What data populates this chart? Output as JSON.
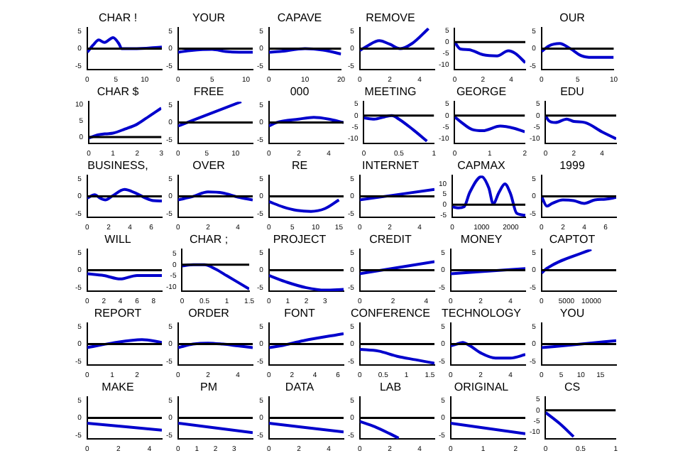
{
  "chart_data": [
    {
      "type": "line",
      "title": "CHAR !",
      "x": [
        0,
        1,
        2,
        3,
        4.5,
        5.5,
        6,
        8,
        13
      ],
      "values": [
        -1,
        1,
        2.5,
        1.8,
        3.2,
        1.5,
        0,
        0,
        0.5
      ],
      "color": "#0000cc",
      "xlim": [
        0,
        13
      ],
      "xticks": [
        0,
        5,
        10
      ],
      "ylim": [
        -6,
        6
      ],
      "yticks": [
        -5,
        0,
        5
      ],
      "ref_lines": [
        {
          "axis": "y",
          "value": 0,
          "color": "#000000"
        }
      ]
    },
    {
      "type": "line",
      "title": "YOUR",
      "x": [
        0,
        2,
        5,
        7,
        9,
        11
      ],
      "values": [
        -1,
        -0.5,
        -0.2,
        -0.8,
        -1,
        -1
      ],
      "color": "#0000cc",
      "xlim": [
        0,
        11
      ],
      "xticks": [
        0,
        5,
        10
      ],
      "ylim": [
        -6,
        6
      ],
      "yticks": [
        -5,
        0,
        5
      ],
      "ref_lines": [
        {
          "axis": "y",
          "value": 0,
          "color": "#000000"
        }
      ]
    },
    {
      "type": "line",
      "title": "CAPAVE",
      "x": [
        0,
        3,
        10,
        15,
        20
      ],
      "values": [
        -1,
        -0.8,
        0,
        -0.4,
        -1.5
      ],
      "color": "#0000cc",
      "xlim": [
        0,
        20
      ],
      "xticks": [
        0,
        10,
        20
      ],
      "ylim": [
        -6,
        6
      ],
      "yticks": [
        -5,
        0,
        5
      ],
      "ref_lines": [
        {
          "axis": "y",
          "value": 0,
          "color": "#000000"
        }
      ]
    },
    {
      "type": "line",
      "title": "REMOVE",
      "x": [
        0,
        0.5,
        1.3,
        2,
        2.7,
        3.5,
        4.6
      ],
      "values": [
        -0.5,
        0.8,
        2.3,
        1.3,
        0,
        1.5,
        5.8
      ],
      "color": "#0000cc",
      "xlim": [
        0,
        5
      ],
      "xticks": [
        0,
        2,
        4
      ],
      "ylim": [
        -6,
        6
      ],
      "yticks": [
        -5,
        0,
        5
      ],
      "ref_lines": [
        {
          "axis": "y",
          "value": 0,
          "color": "#000000"
        }
      ]
    },
    {
      "type": "line",
      "x": [
        0,
        0.4,
        1,
        2,
        3,
        3.8,
        4.3,
        5
      ],
      "values": [
        0,
        -3,
        -3.3,
        -5.5,
        -6,
        -3.8,
        -5,
        -9
      ],
      "color": "#0000cc",
      "xlim": [
        0,
        5
      ],
      "xticks": [
        0,
        2,
        4
      ],
      "ylim": [
        -12,
        6
      ],
      "yticks": [
        -10,
        -5,
        0,
        5
      ],
      "ref_lines": [
        {
          "axis": "y",
          "value": 0,
          "color": "#000000"
        }
      ]
    },
    {
      "type": "line",
      "title": "OUR",
      "x": [
        0,
        1,
        2.5,
        4,
        5.5,
        7,
        10
      ],
      "values": [
        -0.8,
        0.8,
        1.5,
        0,
        -2,
        -2.5,
        -2.5
      ],
      "color": "#0000cc",
      "xlim": [
        0,
        10
      ],
      "xticks": [
        0,
        5,
        10
      ],
      "ylim": [
        -6,
        6
      ],
      "yticks": [
        -5,
        0,
        5
      ],
      "ref_lines": [
        {
          "axis": "y",
          "value": 0,
          "color": "#000000"
        }
      ]
    },
    {
      "type": "line",
      "title": "CHAR $",
      "x": [
        0,
        0.3,
        0.7,
        1,
        1.5,
        2,
        2.5,
        3
      ],
      "values": [
        -0.3,
        0.5,
        1,
        1.2,
        2.5,
        4,
        6.5,
        9
      ],
      "color": "#0000cc",
      "xlim": [
        0,
        3
      ],
      "xticks": [
        0,
        1,
        2,
        3
      ],
      "ylim": [
        -2,
        11
      ],
      "yticks": [
        0,
        5,
        10
      ],
      "ref_lines": [
        {
          "axis": "y",
          "value": 0,
          "color": "#000000"
        }
      ]
    },
    {
      "type": "line",
      "title": "FREE",
      "x": [
        0,
        11
      ],
      "values": [
        -1,
        6
      ],
      "color": "#0000cc",
      "xlim": [
        0,
        13
      ],
      "xticks": [
        0,
        5,
        10
      ],
      "ylim": [
        -6,
        6
      ],
      "yticks": [
        -5,
        0,
        5
      ],
      "ref_lines": [
        {
          "axis": "y",
          "value": 0,
          "color": "#000000"
        }
      ]
    },
    {
      "type": "line",
      "title": "000",
      "x": [
        0,
        0.5,
        2,
        3,
        4,
        5
      ],
      "values": [
        -1,
        0,
        1,
        1.5,
        1,
        0
      ],
      "color": "#0000cc",
      "xlim": [
        0,
        5
      ],
      "xticks": [
        0,
        2,
        4
      ],
      "ylim": [
        -6,
        6
      ],
      "yticks": [
        -5,
        0,
        5
      ],
      "ref_lines": [
        {
          "axis": "y",
          "value": 0,
          "color": "#000000"
        }
      ]
    },
    {
      "type": "line",
      "title": "MEETING",
      "x": [
        0,
        0.15,
        0.3,
        0.4,
        0.5,
        0.7,
        0.9
      ],
      "values": [
        -1,
        -1.5,
        -0.5,
        0,
        -1.5,
        -6,
        -11
      ],
      "color": "#0000cc",
      "xlim": [
        0,
        1
      ],
      "xticks": [
        0,
        0.5,
        1
      ],
      "ylim": [
        -12,
        6
      ],
      "yticks": [
        -10,
        -5,
        0,
        5
      ],
      "ref_lines": [
        {
          "axis": "y",
          "value": 0,
          "color": "#000000"
        }
      ]
    },
    {
      "type": "line",
      "title": "GEORGE",
      "x": [
        0,
        0.2,
        0.5,
        0.8,
        1.3,
        1.7,
        2
      ],
      "values": [
        -0.5,
        -3,
        -6,
        -6.5,
        -4.5,
        -5.5,
        -7
      ],
      "color": "#0000cc",
      "xlim": [
        0,
        2
      ],
      "xticks": [
        0,
        1,
        2
      ],
      "ylim": [
        -12,
        6
      ],
      "yticks": [
        -10,
        -5,
        0,
        5
      ],
      "ref_lines": [
        {
          "axis": "y",
          "value": 0,
          "color": "#000000"
        }
      ]
    },
    {
      "type": "line",
      "title": "EDU",
      "x": [
        0,
        0.2,
        0.7,
        1.5,
        2,
        2.8,
        4,
        5
      ],
      "values": [
        0,
        -2,
        -3,
        -1.5,
        -2.5,
        -3,
        -7,
        -10
      ],
      "color": "#0000cc",
      "xlim": [
        0,
        5
      ],
      "xticks": [
        0,
        2,
        4
      ],
      "ylim": [
        -12,
        6
      ],
      "yticks": [
        -10,
        -5,
        0,
        5
      ],
      "ref_lines": [
        {
          "axis": "y",
          "value": 0,
          "color": "#000000"
        }
      ]
    },
    {
      "type": "line",
      "title": "BUSINESS,",
      "x": [
        0,
        0.7,
        1.2,
        1.7,
        2.3,
        3.5,
        4.5,
        5.5,
        6.2,
        7
      ],
      "values": [
        -0.5,
        0.5,
        -0.5,
        -1,
        0,
        2,
        1,
        -0.5,
        -1.2,
        -1.3
      ],
      "color": "#0000cc",
      "xlim": [
        0,
        7
      ],
      "xticks": [
        0,
        2,
        4,
        6
      ],
      "ylim": [
        -6,
        6
      ],
      "yticks": [
        -5,
        0,
        5
      ],
      "ref_lines": [
        {
          "axis": "y",
          "value": 0,
          "color": "#000000"
        }
      ]
    },
    {
      "type": "line",
      "title": "OVER",
      "x": [
        0,
        1,
        2,
        3,
        4,
        5
      ],
      "values": [
        -1,
        0,
        1.3,
        1,
        -0.2,
        -1
      ],
      "color": "#0000cc",
      "xlim": [
        0,
        5
      ],
      "xticks": [
        0,
        2,
        4
      ],
      "ylim": [
        -6,
        6
      ],
      "yticks": [
        -5,
        0,
        5
      ],
      "ref_lines": [
        {
          "axis": "y",
          "value": 0,
          "color": "#000000"
        }
      ]
    },
    {
      "type": "line",
      "title": "RE",
      "x": [
        0,
        3,
        6,
        9,
        12,
        15
      ],
      "values": [
        -1.5,
        -3,
        -4,
        -4.3,
        -3.5,
        -1
      ],
      "color": "#0000cc",
      "xlim": [
        0,
        16
      ],
      "xticks": [
        0,
        5,
        10,
        15
      ],
      "ylim": [
        -6,
        6
      ],
      "yticks": [
        -5,
        0,
        5
      ],
      "ref_lines": [
        {
          "axis": "y",
          "value": 0,
          "color": "#000000"
        }
      ]
    },
    {
      "type": "line",
      "title": "INTERNET",
      "x": [
        0,
        5
      ],
      "values": [
        -1,
        2
      ],
      "color": "#0000cc",
      "xlim": [
        0,
        5
      ],
      "xticks": [
        0,
        2,
        4
      ],
      "ylim": [
        -6,
        6
      ],
      "yticks": [
        -5,
        0,
        5
      ],
      "ref_lines": [
        {
          "axis": "y",
          "value": 0,
          "color": "#000000"
        }
      ]
    },
    {
      "type": "line",
      "title": "CAPMAX",
      "x": [
        0,
        200,
        400,
        600,
        1000,
        1250,
        1400,
        1600,
        1800,
        2000,
        2200,
        2500
      ],
      "values": [
        -1,
        -1.5,
        -1,
        6,
        13.5,
        8,
        0.5,
        6,
        10,
        5,
        -4,
        -5
      ],
      "color": "#0000cc",
      "xlim": [
        0,
        2500
      ],
      "xticks": [
        0,
        1000,
        2000
      ],
      "ylim": [
        -6,
        14
      ],
      "yticks": [
        -5,
        0,
        5,
        10
      ],
      "ref_lines": [
        {
          "axis": "y",
          "value": 0,
          "color": "#000000"
        }
      ]
    },
    {
      "type": "line",
      "title": "1999",
      "x": [
        0,
        0.5,
        1,
        2,
        3,
        4,
        5,
        6,
        7
      ],
      "values": [
        0,
        -2.8,
        -2,
        -1,
        -1.2,
        -2,
        -1,
        -0.8,
        -0.3
      ],
      "color": "#0000cc",
      "xlim": [
        0,
        7
      ],
      "xticks": [
        0,
        2,
        4,
        6
      ],
      "ylim": [
        -6,
        6
      ],
      "yticks": [
        -5,
        0,
        5
      ],
      "ref_lines": [
        {
          "axis": "y",
          "value": 0,
          "color": "#000000"
        }
      ]
    },
    {
      "type": "line",
      "title": "WILL",
      "x": [
        0,
        2,
        4,
        6,
        9
      ],
      "values": [
        -1,
        -1.5,
        -2.5,
        -1.5,
        -1.5
      ],
      "color": "#0000cc",
      "xlim": [
        0,
        9
      ],
      "xticks": [
        0,
        2,
        4,
        6,
        8
      ],
      "ylim": [
        -6,
        6
      ],
      "yticks": [
        -5,
        0,
        5
      ],
      "ref_lines": [
        {
          "axis": "y",
          "value": 0,
          "color": "#000000"
        }
      ]
    },
    {
      "type": "line",
      "title": "CHAR ;",
      "x": [
        0,
        0.25,
        0.5,
        0.75,
        1,
        1.25,
        1.5
      ],
      "values": [
        -0.5,
        0,
        0,
        -2,
        -5,
        -8,
        -11
      ],
      "color": "#0000cc",
      "xlim": [
        0,
        1.5
      ],
      "xticks": [
        0,
        0.5,
        1,
        1.5
      ],
      "ylim": [
        -12,
        7
      ],
      "yticks": [
        -10,
        -5,
        0,
        5
      ],
      "ref_lines": [
        {
          "axis": "y",
          "value": 0,
          "color": "#000000"
        }
      ]
    },
    {
      "type": "line",
      "title": "PROJECT",
      "x": [
        0,
        1,
        2,
        3,
        4
      ],
      "values": [
        -1.5,
        -3.5,
        -5,
        -5.7,
        -5.5
      ],
      "color": "#0000cc",
      "xlim": [
        0,
        4
      ],
      "xticks": [
        0,
        1,
        2,
        3
      ],
      "ylim": [
        -6,
        6
      ],
      "yticks": [
        -5,
        0,
        5
      ],
      "ref_lines": [
        {
          "axis": "y",
          "value": 0,
          "color": "#000000"
        }
      ]
    },
    {
      "type": "line",
      "title": "CREDIT",
      "x": [
        0,
        4.5
      ],
      "values": [
        -1,
        2.5
      ],
      "color": "#0000cc",
      "xlim": [
        0,
        4.5
      ],
      "xticks": [
        0,
        2,
        4
      ],
      "ylim": [
        -6,
        6
      ],
      "yticks": [
        -5,
        0,
        5
      ],
      "ref_lines": [
        {
          "axis": "y",
          "value": 0,
          "color": "#000000"
        }
      ]
    },
    {
      "type": "line",
      "title": "MONEY",
      "x": [
        0,
        5
      ],
      "values": [
        -1,
        0.5
      ],
      "color": "#0000cc",
      "xlim": [
        0,
        5
      ],
      "xticks": [
        0,
        2,
        4
      ],
      "ylim": [
        -6,
        6
      ],
      "yticks": [
        -5,
        0,
        5
      ],
      "ref_lines": [
        {
          "axis": "y",
          "value": 0,
          "color": "#000000"
        }
      ]
    },
    {
      "type": "line",
      "title": "CAPTOT",
      "x": [
        0,
        1000,
        10000
      ],
      "values": [
        -0.8,
        0.5,
        6
      ],
      "color": "#0000cc",
      "xlim": [
        0,
        15000
      ],
      "xticks": [
        0,
        5000,
        10000
      ],
      "ylim": [
        -6,
        6
      ],
      "yticks": [
        -5,
        0,
        5
      ],
      "ref_lines": [
        {
          "axis": "y",
          "value": 0,
          "color": "#000000"
        }
      ]
    },
    {
      "type": "line",
      "title": "REPORT",
      "x": [
        0,
        1,
        2.2,
        3
      ],
      "values": [
        -1,
        0.3,
        1.3,
        0.5
      ],
      "color": "#0000cc",
      "xlim": [
        0,
        3
      ],
      "xticks": [
        0,
        1,
        2
      ],
      "ylim": [
        -6,
        6
      ],
      "yticks": [
        -5,
        0,
        5
      ],
      "ref_lines": [
        {
          "axis": "y",
          "value": 0,
          "color": "#000000"
        }
      ]
    },
    {
      "type": "line",
      "title": "ORDER",
      "x": [
        0,
        1,
        2,
        3,
        4,
        5
      ],
      "values": [
        -1,
        0,
        0.3,
        0,
        -0.5,
        -1
      ],
      "color": "#0000cc",
      "xlim": [
        0,
        5
      ],
      "xticks": [
        0,
        2,
        4
      ],
      "ylim": [
        -6,
        6
      ],
      "yticks": [
        -5,
        0,
        5
      ],
      "ref_lines": [
        {
          "axis": "y",
          "value": 0,
          "color": "#000000"
        }
      ]
    },
    {
      "type": "line",
      "title": "FONT",
      "x": [
        0,
        1,
        3,
        6.5
      ],
      "values": [
        -1,
        -0.5,
        1,
        3
      ],
      "color": "#0000cc",
      "xlim": [
        0,
        6.5
      ],
      "xticks": [
        0,
        2,
        4,
        6
      ],
      "ylim": [
        -6,
        6
      ],
      "yticks": [
        -5,
        0,
        5
      ],
      "ref_lines": [
        {
          "axis": "y",
          "value": 0,
          "color": "#000000"
        }
      ]
    },
    {
      "type": "line",
      "title": "CONFERENCE",
      "x": [
        0,
        0.4,
        0.8,
        1.2,
        1.6
      ],
      "values": [
        -1.5,
        -2,
        -3.5,
        -4.5,
        -5.5
      ],
      "color": "#0000cc",
      "xlim": [
        0,
        1.6
      ],
      "xticks": [
        0,
        0.5,
        1,
        1.5
      ],
      "ylim": [
        -6,
        6
      ],
      "yticks": [
        -5,
        0,
        5
      ],
      "ref_lines": [
        {
          "axis": "y",
          "value": 0,
          "color": "#000000"
        }
      ]
    },
    {
      "type": "line",
      "title": "TECHNOLOGY",
      "x": [
        0,
        0.4,
        0.8,
        1.3,
        2,
        3,
        4,
        5
      ],
      "values": [
        -0.5,
        0,
        0.5,
        -0.5,
        -2.5,
        -4,
        -4,
        -3
      ],
      "color": "#0000cc",
      "xlim": [
        0,
        5
      ],
      "xticks": [
        0,
        2,
        4
      ],
      "ylim": [
        -6,
        6
      ],
      "yticks": [
        -5,
        0,
        5
      ],
      "ref_lines": [
        {
          "axis": "y",
          "value": 0,
          "color": "#000000"
        }
      ]
    },
    {
      "type": "line",
      "title": "YOU",
      "x": [
        0,
        10,
        19
      ],
      "values": [
        -1,
        0,
        1
      ],
      "color": "#0000cc",
      "xlim": [
        0,
        19
      ],
      "xticks": [
        0,
        5,
        10,
        15
      ],
      "ylim": [
        -6,
        6
      ],
      "yticks": [
        -5,
        0,
        5
      ],
      "ref_lines": [
        {
          "axis": "y",
          "value": 0,
          "color": "#000000"
        }
      ]
    },
    {
      "type": "line",
      "title": "MAKE",
      "x": [
        0,
        4.8
      ],
      "values": [
        -1.5,
        -3.5
      ],
      "color": "#0000cc",
      "xlim": [
        0,
        4.8
      ],
      "xticks": [
        0,
        2,
        4
      ],
      "ylim": [
        -6,
        6
      ],
      "yticks": [
        -5,
        0,
        5
      ],
      "ref_lines": [
        {
          "axis": "y",
          "value": 0,
          "color": "#000000"
        }
      ]
    },
    {
      "type": "line",
      "title": "PM",
      "x": [
        0,
        4
      ],
      "values": [
        -1.5,
        -4.2
      ],
      "color": "#0000cc",
      "xlim": [
        0,
        4
      ],
      "xticks": [
        0,
        1,
        2,
        3
      ],
      "ylim": [
        -6,
        6
      ],
      "yticks": [
        -5,
        0,
        5
      ],
      "ref_lines": [
        {
          "axis": "y",
          "value": 0,
          "color": "#000000"
        }
      ]
    },
    {
      "type": "line",
      "title": "DATA",
      "x": [
        0,
        5
      ],
      "values": [
        -1.5,
        -4
      ],
      "color": "#0000cc",
      "xlim": [
        0,
        5
      ],
      "xticks": [
        0,
        2,
        4
      ],
      "ylim": [
        -6,
        6
      ],
      "yticks": [
        -5,
        0,
        5
      ],
      "ref_lines": [
        {
          "axis": "y",
          "value": 0,
          "color": "#000000"
        }
      ]
    },
    {
      "type": "line",
      "title": "LAB",
      "x": [
        0,
        1,
        2,
        2.6
      ],
      "values": [
        -1,
        -2.5,
        -4.5,
        -5.8
      ],
      "color": "#0000cc",
      "xlim": [
        0,
        5
      ],
      "xticks": [
        0,
        2,
        4
      ],
      "ylim": [
        -6,
        6
      ],
      "yticks": [
        -5,
        0,
        5
      ],
      "ref_lines": [
        {
          "axis": "y",
          "value": 0,
          "color": "#000000"
        }
      ]
    },
    {
      "type": "line",
      "title": "ORIGINAL",
      "x": [
        0,
        2.3
      ],
      "values": [
        -1.5,
        -4.5
      ],
      "color": "#0000cc",
      "xlim": [
        0,
        2.3
      ],
      "xticks": [
        0,
        1,
        2
      ],
      "ylim": [
        -6,
        6
      ],
      "yticks": [
        -5,
        0,
        5
      ],
      "ref_lines": [
        {
          "axis": "y",
          "value": 0,
          "color": "#000000"
        }
      ]
    },
    {
      "type": "line",
      "title": "CS",
      "x": [
        0,
        0.2,
        0.4
      ],
      "values": [
        -1,
        -6,
        -12
      ],
      "color": "#0000cc",
      "xlim": [
        0,
        1
      ],
      "xticks": [
        0,
        0.5,
        1
      ],
      "ylim": [
        -13,
        6
      ],
      "yticks": [
        -10,
        -5,
        0,
        5
      ],
      "ref_lines": [
        {
          "axis": "y",
          "value": 0,
          "color": "#000000"
        }
      ]
    }
  ]
}
